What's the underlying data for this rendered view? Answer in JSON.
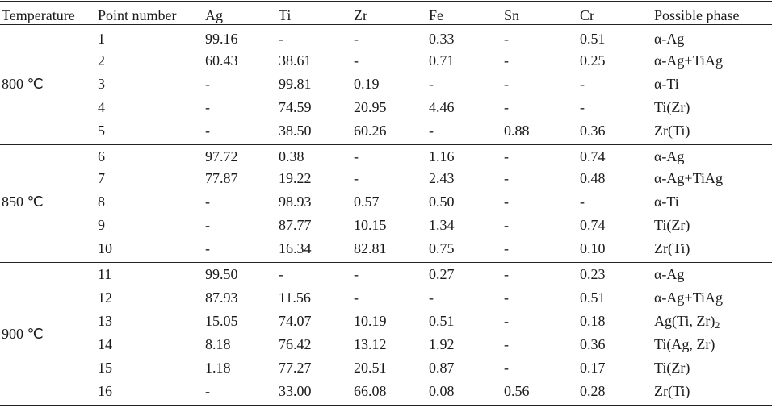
{
  "table": {
    "headers": [
      "Temperature",
      "Point number",
      "Ag",
      "Ti",
      "Zr",
      "Fe",
      "Sn",
      "Cr",
      "Possible phase"
    ],
    "groups": [
      {
        "temperature": "800 ℃",
        "rows": [
          [
            "1",
            "99.16",
            "-",
            "-",
            "0.33",
            "-",
            "0.51",
            "α-Ag"
          ],
          [
            "2",
            "60.43",
            "38.61",
            "-",
            "0.71",
            "-",
            "0.25",
            "α-Ag+TiAg"
          ],
          [
            "3",
            "-",
            "99.81",
            "0.19",
            "-",
            "-",
            "-",
            "α-Ti"
          ],
          [
            "4",
            "-",
            "74.59",
            "20.95",
            "4.46",
            "-",
            "-",
            "Ti(Zr)"
          ],
          [
            "5",
            "-",
            "38.50",
            "60.26",
            "-",
            "0.88",
            "0.36",
            "Zr(Ti)"
          ]
        ]
      },
      {
        "temperature": "850 ℃",
        "rows": [
          [
            "6",
            "97.72",
            "0.38",
            "-",
            "1.16",
            "-",
            "0.74",
            "α-Ag"
          ],
          [
            "7",
            "77.87",
            "19.22",
            "-",
            "2.43",
            "-",
            "0.48",
            "α-Ag+TiAg"
          ],
          [
            "8",
            "-",
            "98.93",
            "0.57",
            "0.50",
            "-",
            "-",
            "α-Ti"
          ],
          [
            "9",
            "-",
            "87.77",
            "10.15",
            "1.34",
            "-",
            "0.74",
            "Ti(Zr)"
          ],
          [
            "10",
            "-",
            "16.34",
            "82.81",
            "0.75",
            "-",
            "0.10",
            "Zr(Ti)"
          ]
        ]
      },
      {
        "temperature": "900 ℃",
        "rows": [
          [
            "11",
            "99.50",
            "-",
            "-",
            "0.27",
            "-",
            "0.23",
            "α-Ag"
          ],
          [
            "12",
            "87.93",
            "11.56",
            "-",
            "-",
            "-",
            "0.51",
            "α-Ag+TiAg"
          ],
          [
            "13",
            "15.05",
            "74.07",
            "10.19",
            "0.51",
            "-",
            "0.18",
            "Ag(Ti, Zr)2"
          ],
          [
            "14",
            "8.18",
            "76.42",
            "13.12",
            "1.92",
            "-",
            "0.36",
            "Ti(Ag, Zr)"
          ],
          [
            "15",
            "1.18",
            "77.27",
            "20.51",
            "0.87",
            "-",
            "0.17",
            "Ti(Zr)"
          ],
          [
            "16",
            "-",
            "33.00",
            "66.08",
            "0.08",
            "0.56",
            "0.28",
            "Zr(Ti)"
          ]
        ]
      }
    ]
  }
}
